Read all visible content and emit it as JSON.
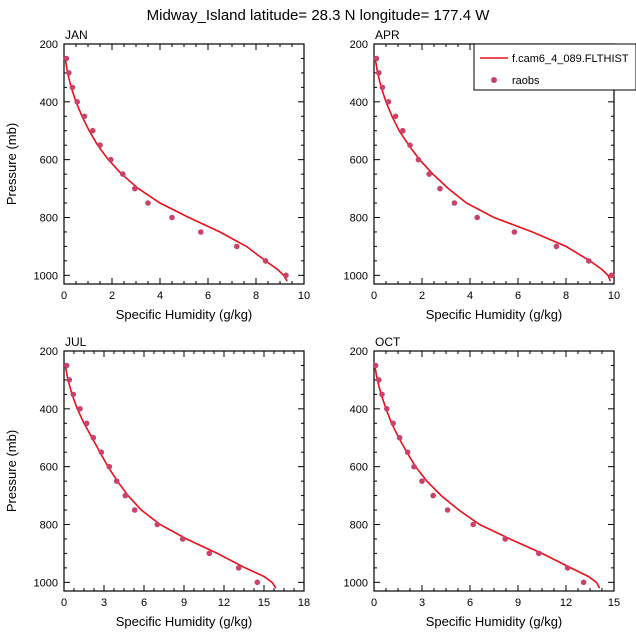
{
  "figure": {
    "title": "Midway_Island  latitude= 28.3 N longitude= 177.4 W"
  },
  "legend": {
    "model_label": "f.cam6_4_089.FLTHIST",
    "obs_label": "raobs",
    "model_color": "#e8101a",
    "obs_color": "#c8426a"
  },
  "chart_data": [
    {
      "type": "line",
      "panel_label": "JAN",
      "xlabel": "Specific Humidity (g/kg)",
      "ylabel": "Pressure (mb)",
      "xlim": [
        0,
        10
      ],
      "ylim": [
        1030,
        200
      ],
      "y_reversed": true,
      "xticks": [
        "0",
        "2",
        "4",
        "6",
        "8",
        "10"
      ],
      "yticks": [
        "200",
        "400",
        "600",
        "800",
        "1000"
      ],
      "series": [
        {
          "name": "f.cam6_4_089.FLTHIST",
          "kind": "line",
          "x": [
            0.05,
            0.15,
            0.3,
            0.5,
            0.75,
            1.05,
            1.4,
            1.85,
            2.4,
            3.1,
            4.0,
            5.2,
            6.5,
            7.6,
            8.4,
            8.9,
            9.15,
            9.3
          ],
          "y": [
            250,
            300,
            350,
            400,
            450,
            500,
            550,
            600,
            650,
            700,
            750,
            800,
            850,
            900,
            950,
            980,
            1000,
            1020
          ]
        },
        {
          "name": "raobs",
          "kind": "scatter",
          "x": [
            0.1,
            0.2,
            0.35,
            0.55,
            0.85,
            1.2,
            1.5,
            1.95,
            2.45,
            2.95,
            3.5,
            4.5,
            5.7,
            7.2,
            8.4,
            9.25
          ],
          "y": [
            250,
            300,
            350,
            400,
            450,
            500,
            550,
            600,
            650,
            700,
            750,
            800,
            850,
            900,
            950,
            1000
          ]
        }
      ]
    },
    {
      "type": "line",
      "panel_label": "APR",
      "xlabel": "Specific Humidity (g/kg)",
      "ylabel": "",
      "xlim": [
        0,
        10
      ],
      "ylim": [
        1030,
        200
      ],
      "y_reversed": true,
      "xticks": [
        "0",
        "2",
        "4",
        "6",
        "8",
        "10"
      ],
      "yticks": [
        "200",
        "400",
        "600",
        "800",
        "1000"
      ],
      "series": [
        {
          "name": "f.cam6_4_089.FLTHIST",
          "kind": "line",
          "x": [
            0.05,
            0.15,
            0.3,
            0.5,
            0.75,
            1.05,
            1.45,
            1.9,
            2.45,
            3.1,
            3.85,
            5.0,
            6.6,
            8.0,
            9.0,
            9.5,
            9.75,
            9.85
          ],
          "y": [
            250,
            300,
            350,
            400,
            450,
            500,
            550,
            600,
            650,
            700,
            750,
            800,
            850,
            900,
            950,
            980,
            1000,
            1020
          ]
        },
        {
          "name": "raobs",
          "kind": "scatter",
          "x": [
            0.1,
            0.2,
            0.35,
            0.6,
            0.9,
            1.2,
            1.5,
            1.85,
            2.3,
            2.75,
            3.35,
            4.3,
            5.85,
            7.6,
            8.95,
            9.9
          ],
          "y": [
            250,
            300,
            350,
            400,
            450,
            500,
            550,
            600,
            650,
            700,
            750,
            800,
            850,
            900,
            950,
            1000
          ]
        }
      ]
    },
    {
      "type": "line",
      "panel_label": "JUL",
      "xlabel": "Specific Humidity (g/kg)",
      "ylabel": "Pressure (mb)",
      "xlim": [
        0,
        18
      ],
      "ylim": [
        1030,
        200
      ],
      "y_reversed": true,
      "xticks": [
        "0",
        "3",
        "6",
        "9",
        "12",
        "15",
        "18"
      ],
      "yticks": [
        "200",
        "400",
        "600",
        "800",
        "1000"
      ],
      "series": [
        {
          "name": "f.cam6_4_089.FLTHIST",
          "kind": "line",
          "x": [
            0.1,
            0.3,
            0.6,
            1.0,
            1.5,
            2.1,
            2.7,
            3.3,
            4.0,
            4.8,
            5.8,
            7.2,
            9.2,
            11.5,
            13.6,
            15.0,
            15.6,
            15.9
          ],
          "y": [
            250,
            300,
            350,
            400,
            450,
            500,
            550,
            600,
            650,
            700,
            750,
            800,
            850,
            900,
            950,
            980,
            1000,
            1020
          ]
        },
        {
          "name": "raobs",
          "kind": "scatter",
          "x": [
            0.2,
            0.4,
            0.7,
            1.2,
            1.7,
            2.2,
            2.8,
            3.4,
            3.95,
            4.6,
            5.3,
            7.0,
            8.9,
            10.9,
            13.1,
            14.5
          ],
          "y": [
            250,
            300,
            350,
            400,
            450,
            500,
            550,
            600,
            650,
            700,
            750,
            800,
            850,
            900,
            950,
            1000
          ]
        }
      ]
    },
    {
      "type": "line",
      "panel_label": "OCT",
      "xlabel": "Specific Humidity (g/kg)",
      "ylabel": "",
      "xlim": [
        0,
        15
      ],
      "ylim": [
        1030,
        200
      ],
      "y_reversed": true,
      "xticks": [
        "0",
        "3",
        "6",
        "9",
        "12",
        "15"
      ],
      "yticks": [
        "200",
        "400",
        "600",
        "800",
        "1000"
      ],
      "series": [
        {
          "name": "f.cam6_4_089.FLTHIST",
          "kind": "line",
          "x": [
            0.05,
            0.2,
            0.45,
            0.75,
            1.1,
            1.55,
            2.05,
            2.6,
            3.3,
            4.2,
            5.3,
            6.6,
            8.5,
            10.5,
            12.3,
            13.4,
            13.9,
            14.1
          ],
          "y": [
            250,
            300,
            350,
            400,
            450,
            500,
            550,
            600,
            650,
            700,
            750,
            800,
            850,
            900,
            950,
            980,
            1000,
            1020
          ]
        },
        {
          "name": "raobs",
          "kind": "scatter",
          "x": [
            0.1,
            0.3,
            0.5,
            0.8,
            1.2,
            1.6,
            2.1,
            2.5,
            3.0,
            3.7,
            4.6,
            6.2,
            8.2,
            10.3,
            12.1,
            13.1
          ],
          "y": [
            250,
            300,
            350,
            400,
            450,
            500,
            550,
            600,
            650,
            700,
            750,
            800,
            850,
            900,
            950,
            1000
          ]
        }
      ]
    }
  ]
}
